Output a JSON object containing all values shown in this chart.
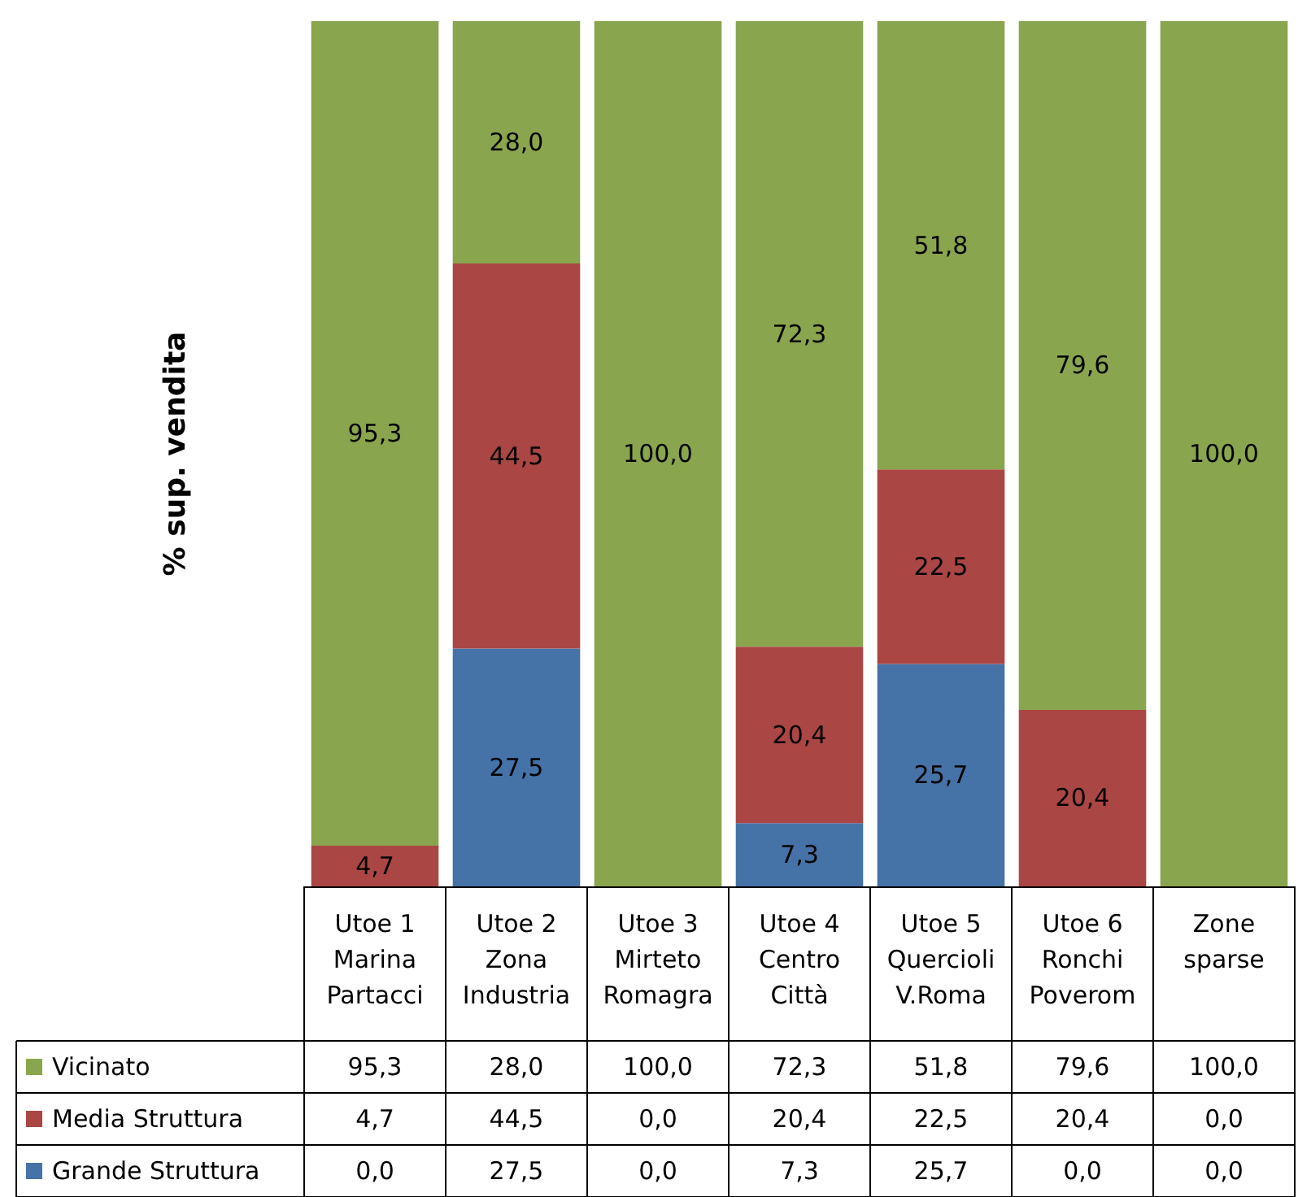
{
  "chart_data": {
    "type": "bar",
    "stacked": true,
    "ylabel": "% sup. vendita",
    "ylim": [
      0,
      100
    ],
    "tick_labels": "x",
    "legend": "bottom left",
    "data_labels": true,
    "categories": [
      "Utoe 1\nMarina\nPartacci",
      "Utoe 2\nZona\nIndustria",
      "Utoe 3\nMirteto\nRomagra",
      "Utoe 4\nCentro\nCittà",
      "Utoe 5\nQuercioli\nV.Roma",
      "Utoe 6\nRonchi\nPoverom",
      "Zone\nsparse"
    ],
    "series": [
      {
        "name": "Grande Struttura",
        "color": "#4572a7",
        "values": [
          0,
          27.5,
          0,
          7.3,
          25.7,
          0,
          0
        ],
        "value_labels": [
          "0,0",
          "27,5",
          "0,0",
          "7,3",
          "25,7",
          "0,0",
          "0,0"
        ]
      },
      {
        "name": "Media Struttura",
        "color": "#aa4643",
        "values": [
          4.7,
          44.5,
          0,
          20.4,
          22.5,
          20.4,
          0
        ],
        "value_labels": [
          "4,7",
          "44,5",
          "0,0",
          "20,4",
          "22,5",
          "20,4",
          "0,0"
        ]
      },
      {
        "name": "Vicinato",
        "color": "#89a54e",
        "values": [
          95.3,
          28,
          100,
          72.3,
          51.8,
          79.6,
          100
        ],
        "value_labels": [
          "95,3",
          "28,0",
          "100,0",
          "72,3",
          "51,8",
          "79,6",
          "100,0"
        ]
      }
    ]
  }
}
